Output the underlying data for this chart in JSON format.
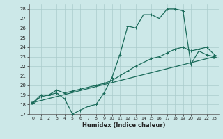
{
  "xlabel": "Humidex (Indice chaleur)",
  "bg_color": "#cce8e8",
  "grid_color": "#aacccc",
  "line_color": "#1a6b5a",
  "ylim": [
    17,
    28.5
  ],
  "xlim": [
    -0.5,
    23.5
  ],
  "yticks": [
    17,
    18,
    19,
    20,
    21,
    22,
    23,
    24,
    25,
    26,
    27,
    28
  ],
  "xticks": [
    0,
    1,
    2,
    3,
    4,
    5,
    6,
    7,
    8,
    9,
    10,
    11,
    12,
    13,
    14,
    15,
    16,
    17,
    18,
    19,
    20,
    21,
    22,
    23
  ],
  "line1_x": [
    0,
    1,
    2,
    3,
    4,
    5,
    6,
    7,
    8,
    9,
    10,
    11,
    12,
    13,
    14,
    15,
    16,
    17,
    18,
    19,
    20,
    21,
    22,
    23
  ],
  "line1_y": [
    18.2,
    19.0,
    19.0,
    19.2,
    18.6,
    17.0,
    17.4,
    17.8,
    18.0,
    19.2,
    20.8,
    23.2,
    26.2,
    26.0,
    27.4,
    27.4,
    27.0,
    28.0,
    28.0,
    27.8,
    22.2,
    23.6,
    23.2,
    23.0
  ],
  "line2_x": [
    0,
    1,
    2,
    3,
    4,
    5,
    6,
    7,
    8,
    9,
    10,
    11,
    12,
    13,
    14,
    15,
    16,
    17,
    18,
    19,
    20,
    21,
    22,
    23
  ],
  "line2_y": [
    18.2,
    18.8,
    19.0,
    19.5,
    19.2,
    19.4,
    19.6,
    19.8,
    20.0,
    20.2,
    20.5,
    21.0,
    21.5,
    22.0,
    22.4,
    22.8,
    23.0,
    23.4,
    23.8,
    24.0,
    23.6,
    23.8,
    24.0,
    23.2
  ],
  "line3_x": [
    0,
    23
  ],
  "line3_y": [
    18.2,
    23.0
  ]
}
